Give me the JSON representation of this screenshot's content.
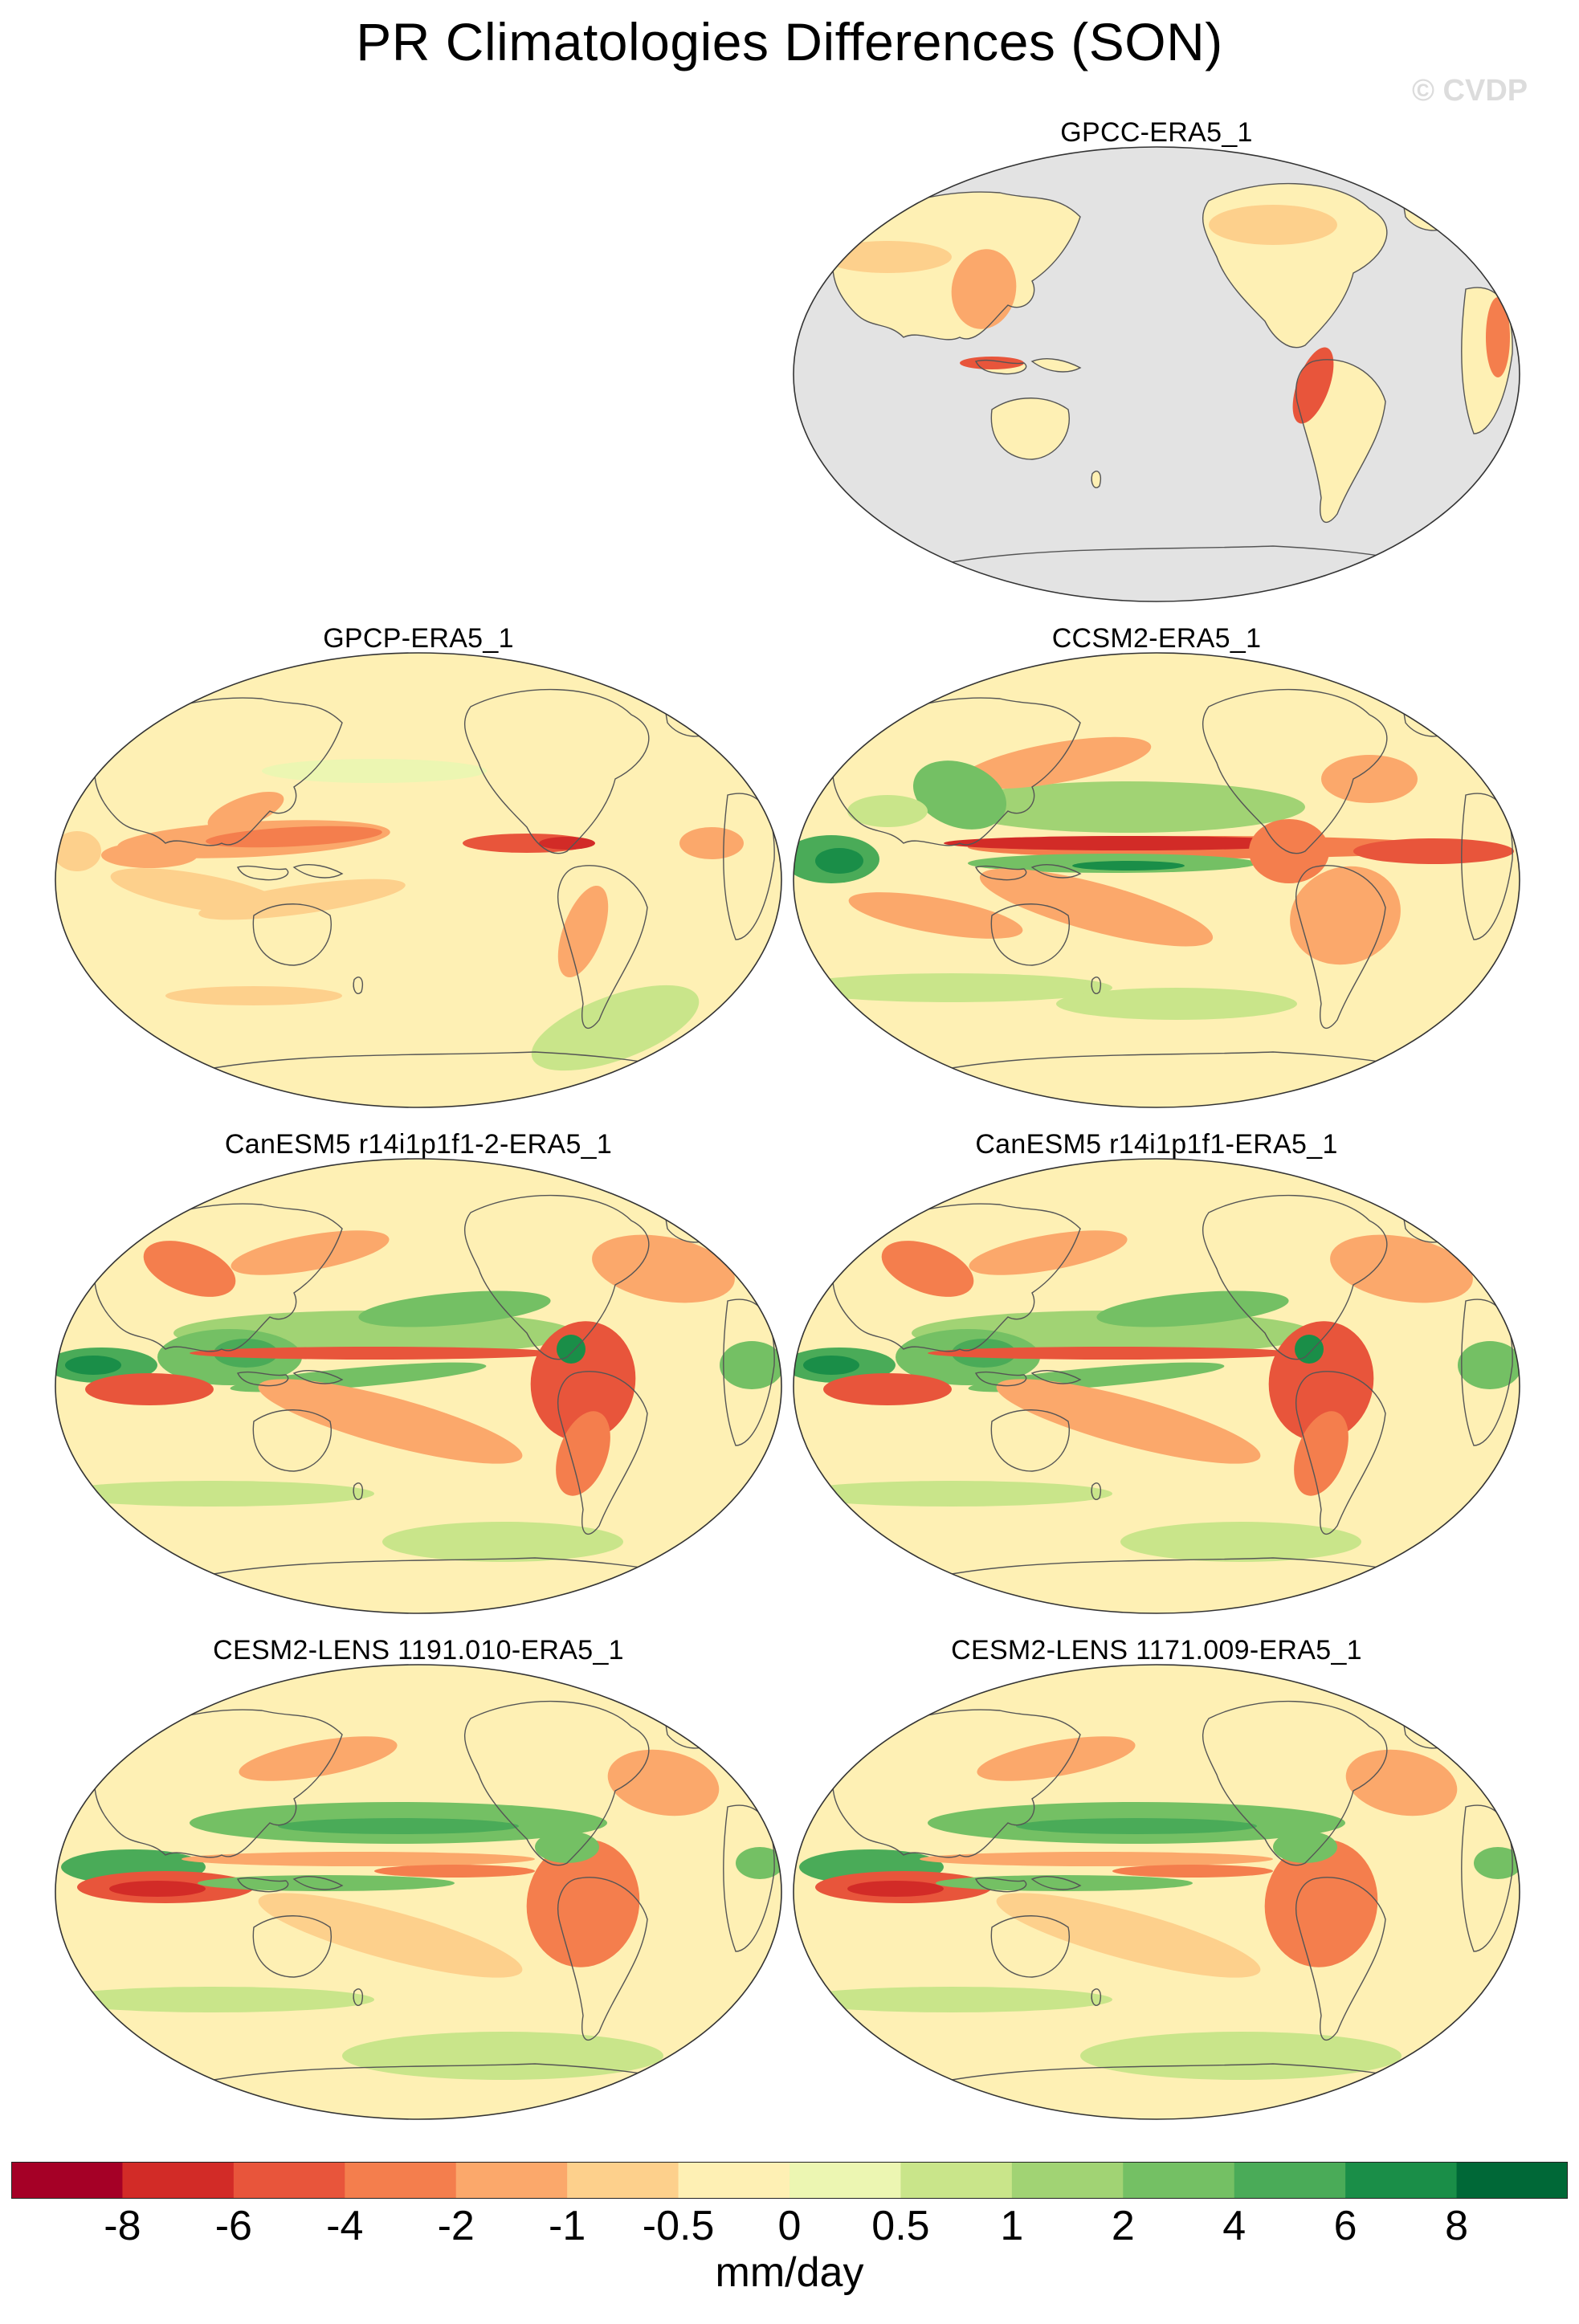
{
  "title": "PR Climatologies Differences (SON)",
  "watermark": "© CVDP",
  "panels": [
    {
      "label": "GPCC-ERA5_1",
      "style": "land-only"
    },
    {
      "label": "GPCP-ERA5_1",
      "style": "obs-global"
    },
    {
      "label": "CCSM2-ERA5_1",
      "style": "ccsm"
    },
    {
      "label": "CanESM5 r14i1p1f1-2-ERA5_1",
      "style": "canesm"
    },
    {
      "label": "CanESM5 r14i1p1f1-ERA5_1",
      "style": "canesm"
    },
    {
      "label": "CESM2-LENS 1191.010-ERA5_1",
      "style": "cesm"
    },
    {
      "label": "CESM2-LENS 1171.009-ERA5_1",
      "style": "cesm"
    }
  ],
  "colorbar": {
    "colors": [
      "#a50026",
      "#d22b27",
      "#e8553b",
      "#f47e4d",
      "#fba86b",
      "#fdd08c",
      "#fef0b4",
      "#ecf6b2",
      "#c9e58a",
      "#a1d374",
      "#74c064",
      "#4aab58",
      "#1a8e48",
      "#006837"
    ],
    "labels": [
      "-8",
      "-6",
      "-4",
      "-2",
      "-1",
      "-0.5",
      "0",
      "0.5",
      "1",
      "2",
      "4",
      "6",
      "8"
    ],
    "units": "mm/day"
  }
}
